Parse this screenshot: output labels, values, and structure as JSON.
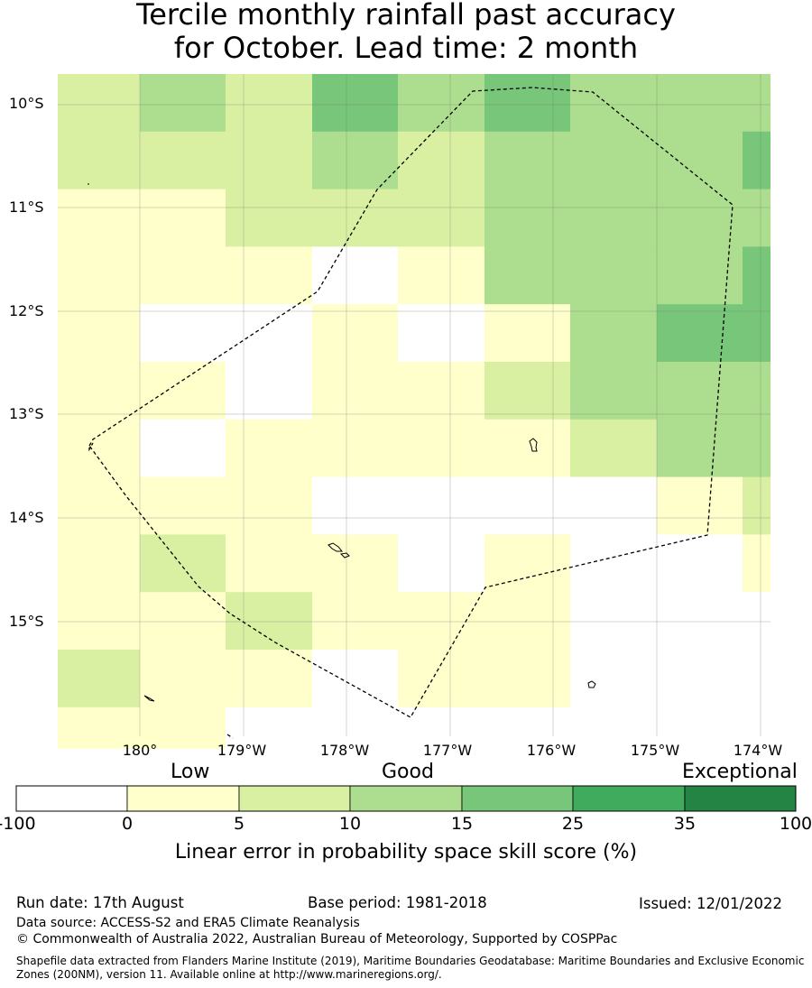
{
  "title": {
    "line1": "Tercile monthly rainfall past accuracy",
    "line2": "for October. Lead time: 2 month"
  },
  "map": {
    "lat_labels": [
      "10°S",
      "11°S",
      "12°S",
      "13°S",
      "14°S",
      "15°S"
    ],
    "lon_labels": [
      "180°",
      "179°W",
      "178°W",
      "177°W",
      "176°W",
      "175°W",
      "174°W"
    ],
    "boundary_style": "dashed black line (EEZ)",
    "grid": "light grey gridlines at each degree"
  },
  "colorbar": {
    "title": "Linear error in probability space skill score (%)",
    "categories": [
      "Low",
      "Good",
      "Exceptional"
    ],
    "ticks": [
      "-100",
      "0",
      "5",
      "10",
      "15",
      "25",
      "35",
      "100"
    ],
    "colors": [
      "#ffffff",
      "#ffffcc",
      "#d9f0a3",
      "#addd8e",
      "#78c679",
      "#41ab5d",
      "#238443"
    ]
  },
  "footer": {
    "run_date": "Run date: 17th August",
    "base_period": "Base period: 1981-2018",
    "issued": "Issued: 12/01/2022",
    "data_source": "Data source: ACCESS-S2 and ERA5 Climate Reanalysis",
    "copyright": "© Commonwealth of Australia 2022, Australian Bureau of Meteorology, Supported by COSPPac",
    "shapefile_line1": "Shapefile data extracted from Flanders Marine Institute (2019), Maritime Boundaries Geodatabase: Maritime Boundaries and Exclusive Economic",
    "shapefile_line2": "Zones (200NM), version 11. Available online at http://www.marineregions.org/."
  },
  "grid_categories": [
    [
      2,
      3,
      2,
      4,
      3,
      4,
      3,
      3,
      3
    ],
    [
      2,
      2,
      2,
      3,
      2,
      3,
      3,
      3,
      4
    ],
    [
      1,
      1,
      2,
      2,
      2,
      3,
      3,
      3,
      3
    ],
    [
      1,
      1,
      1,
      0,
      1,
      3,
      3,
      3,
      4
    ],
    [
      1,
      0,
      0,
      1,
      0,
      1,
      3,
      4,
      4
    ],
    [
      1,
      1,
      0,
      1,
      1,
      2,
      3,
      3,
      3
    ],
    [
      1,
      0,
      1,
      1,
      1,
      1,
      2,
      3,
      3
    ],
    [
      1,
      1,
      1,
      0,
      0,
      0,
      0,
      1,
      2
    ],
    [
      1,
      2,
      1,
      1,
      0,
      1,
      0,
      0,
      1
    ],
    [
      1,
      1,
      2,
      1,
      1,
      1,
      0,
      0,
      0
    ],
    [
      2,
      1,
      1,
      0,
      1,
      1,
      0,
      0,
      0
    ],
    [
      1,
      1,
      0,
      0,
      0,
      0,
      0,
      0,
      0
    ]
  ]
}
